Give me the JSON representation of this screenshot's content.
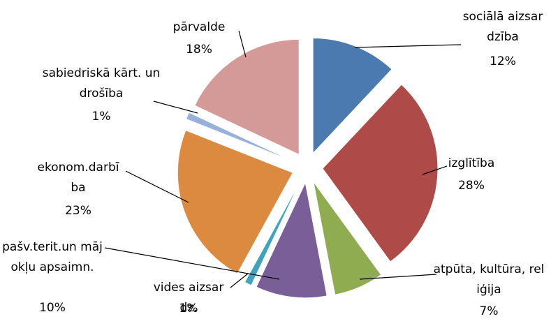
{
  "chart_data": {
    "type": "pie",
    "categories": [
      "sociālā aizsardzība",
      "izglītība",
      "atpūta, kultūra, reliģija",
      "pašv.terit.un mājokļu apsaimn.",
      "vides aizsardz.",
      "ekonom.darbība",
      "sabiedriskā kārt. un drošība",
      "pārvalde"
    ],
    "values": [
      12,
      28,
      7,
      10,
      1,
      23,
      1,
      18
    ],
    "value_labels": [
      "12%",
      "28%",
      "7%",
      "10%",
      "1%",
      "23%",
      "1%",
      "18%"
    ],
    "colors": [
      "#4a7ab0",
      "#ae4a47",
      "#8fac50",
      "#7a5e97",
      "#3fa3bf",
      "#db8a40",
      "#98b1db",
      "#d49a98"
    ]
  }
}
